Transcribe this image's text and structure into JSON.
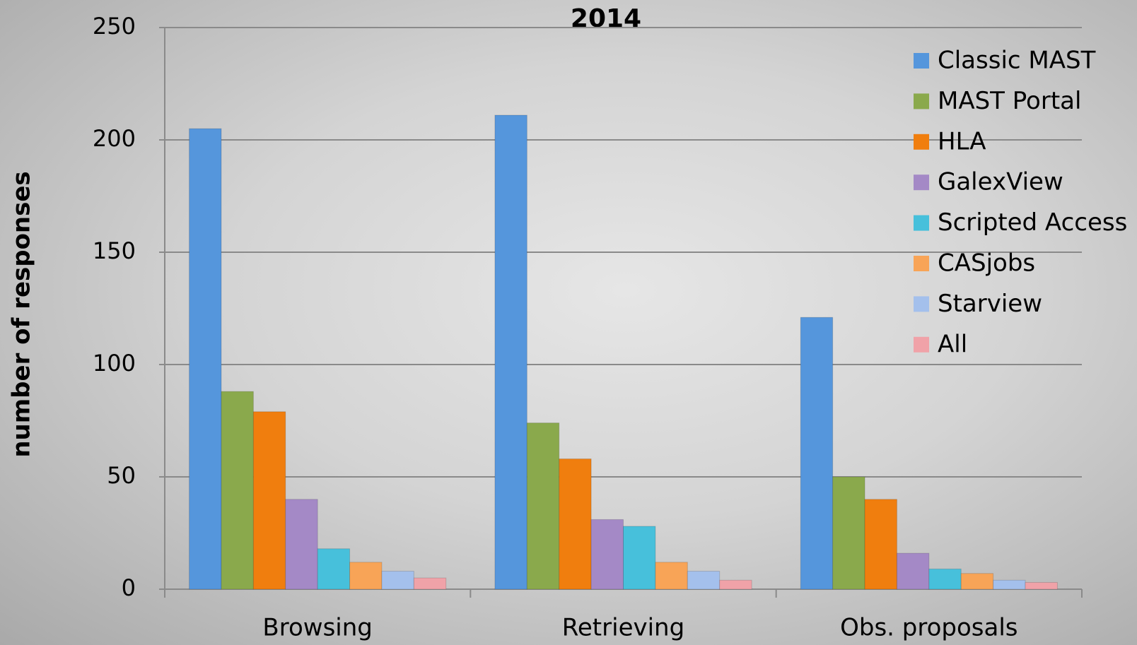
{
  "chart_data": {
    "type": "bar",
    "title": "2014",
    "y_label": "number of responses",
    "categories": [
      "Browsing",
      "Retrieving",
      "Obs. proposals"
    ],
    "series": [
      {
        "name": "Classic MAST",
        "color": "#5596dc",
        "values": [
          205,
          211,
          121
        ]
      },
      {
        "name": "MAST Portal",
        "color": "#8aa94c",
        "values": [
          88,
          74,
          50
        ]
      },
      {
        "name": "HLA",
        "color": "#f07e0e",
        "values": [
          79,
          58,
          40
        ]
      },
      {
        "name": "GalexView",
        "color": "#a489c6",
        "values": [
          40,
          31,
          16
        ]
      },
      {
        "name": "Scripted Access",
        "color": "#47c0db",
        "values": [
          18,
          28,
          9
        ]
      },
      {
        "name": "CASjobs",
        "color": "#f8a457",
        "values": [
          12,
          12,
          7
        ]
      },
      {
        "name": "Starview",
        "color": "#a4c0ec",
        "values": [
          8,
          8,
          4
        ]
      },
      {
        "name": "All",
        "color": "#f0a2a8",
        "values": [
          5,
          4,
          3
        ]
      }
    ],
    "ylim": [
      0,
      250
    ],
    "yticks": [
      0,
      50,
      100,
      150,
      200,
      250
    ],
    "grid": true,
    "legend": "upper right"
  }
}
